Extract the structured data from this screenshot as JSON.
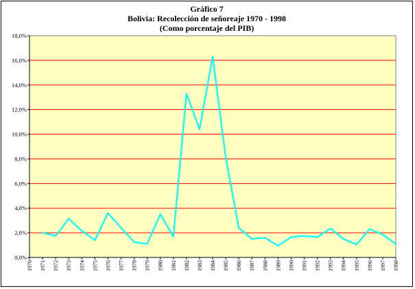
{
  "chart_data": {
    "type": "line",
    "title": "Gráfico 7",
    "subtitle": "Bolivia:  Recolección de señoreaje 1970 - 1998",
    "subtitle2": "(Como porcentaje del PIB)",
    "xlabel": "",
    "ylabel": "",
    "ylim": [
      0,
      18
    ],
    "y_ticks": [
      "0,0%",
      "2,0%",
      "4,0%",
      "6,0%",
      "8,0%",
      "10,0%",
      "12,0%",
      "14,0%",
      "16,0%",
      "18,0%"
    ],
    "y_tick_values": [
      0,
      2,
      4,
      6,
      8,
      10,
      12,
      14,
      16,
      18
    ],
    "categories": [
      "1970",
      "1971",
      "1972",
      "1973",
      "1974",
      "1975",
      "1976",
      "1977",
      "1978",
      "1979",
      "1980",
      "1981",
      "1982",
      "1983",
      "1984",
      "1985",
      "1986",
      "1987",
      "1988",
      "1989",
      "1990",
      "1991",
      "1992",
      "1993",
      "1994",
      "1995",
      "1996",
      "1997",
      "1998"
    ],
    "series": [
      {
        "name": "",
        "x": [
          "1971",
          "1972",
          "1973",
          "1974",
          "1975",
          "1976",
          "1977",
          "1978",
          "1979",
          "1980",
          "1981",
          "1982",
          "1983",
          "1984",
          "1985",
          "1986",
          "1987",
          "1988",
          "1989",
          "1990",
          "1991",
          "1992",
          "1993",
          "1994",
          "1995",
          "1996",
          "1997",
          "1998"
        ],
        "values": [
          2.0,
          1.75,
          3.15,
          2.15,
          1.4,
          3.6,
          2.4,
          1.25,
          1.1,
          3.5,
          1.7,
          13.3,
          10.4,
          16.3,
          8.1,
          2.4,
          1.5,
          1.6,
          0.95,
          1.65,
          1.75,
          1.65,
          2.35,
          1.5,
          1.05,
          2.3,
          1.85,
          1.1
        ]
      }
    ],
    "grid": true,
    "legend": "none",
    "colors": {
      "plot_background": "#ffffc0",
      "gridline": "#ff0000",
      "line": "#00ffff",
      "axis": "#000000"
    }
  }
}
